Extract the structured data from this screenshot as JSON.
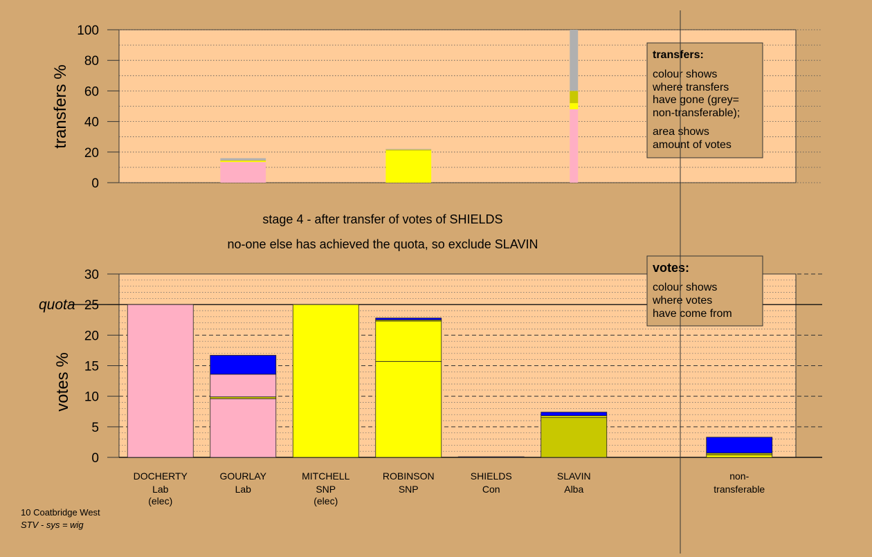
{
  "stage_text": {
    "line1": "stage 4 - after transfer of votes of SHIELDS",
    "line2": "no-one else has achieved the quota, so exclude SLAVIN"
  },
  "footer": {
    "ward": "10 Coatbridge West",
    "system": "STV - sys = wig"
  },
  "transfers_box": {
    "title": "transfers:",
    "line1": "colour shows",
    "line2": "where transfers",
    "line3": "have gone (grey=",
    "line4": "non-transferable);",
    "line5": "area shows",
    "line6": "amount of votes"
  },
  "votes_box": {
    "title": "votes:",
    "line1": "colour shows",
    "line2": "where votes",
    "line3": "have come from"
  },
  "colors": {
    "background": "#D3A872",
    "plot": "#FFCC99",
    "labour": "#FFAFC4",
    "snp": "#FFFF00",
    "alba": "#C8C800",
    "conservative": "#0000FF",
    "non_transferable": "#B0B0B0"
  },
  "chart_data": [
    {
      "type": "bar",
      "stacked": true,
      "ylabel": "transfers %",
      "ylim": [
        0,
        100
      ],
      "yticks": [
        0,
        20,
        40,
        60,
        80,
        100
      ],
      "grid": "dotted",
      "transfers": [
        {
          "from_column": 1,
          "width_share": 0.55,
          "segments": [
            {
              "color": "#FFAFC4",
              "from": 0,
              "to": 13.5
            },
            {
              "color": "#FFFF00",
              "from": 13.5,
              "to": 14.2
            },
            {
              "color": "#C8C800",
              "from": 14.2,
              "to": 14.6
            },
            {
              "color": "#B0B0B0",
              "from": 14.6,
              "to": 16
            }
          ]
        },
        {
          "from_column": 3,
          "width_share": 0.55,
          "segments": [
            {
              "color": "#FFFF00",
              "from": 0,
              "to": 21
            },
            {
              "color": "#C8C800",
              "from": 21,
              "to": 21.6
            },
            {
              "color": "#B0B0B0",
              "from": 21.6,
              "to": 22
            }
          ]
        },
        {
          "from_column": 5,
          "width_share": 0.1,
          "segments": [
            {
              "color": "#FFAFC4",
              "from": 0,
              "to": 48
            },
            {
              "color": "#FFFF00",
              "from": 48,
              "to": 52
            },
            {
              "color": "#C8C800",
              "from": 52,
              "to": 60
            },
            {
              "color": "#B0B0B0",
              "from": 60,
              "to": 100
            }
          ]
        }
      ]
    },
    {
      "type": "bar",
      "stacked": true,
      "ylabel": "votes %",
      "ylim": [
        0,
        30
      ],
      "yticks": [
        0,
        5,
        10,
        15,
        20,
        25,
        30
      ],
      "quota": 25,
      "quota_label": "quota",
      "grid": "dashed",
      "categories": [
        {
          "name": "DOCHERTY",
          "party": "Lab",
          "note": "(elec)"
        },
        {
          "name": "GOURLAY",
          "party": "Lab",
          "note": ""
        },
        {
          "name": "MITCHELL",
          "party": "SNP",
          "note": "(elec)"
        },
        {
          "name": "ROBINSON",
          "party": "SNP",
          "note": ""
        },
        {
          "name": "SHIELDS",
          "party": "Con",
          "note": ""
        },
        {
          "name": "SLAVIN",
          "party": "Alba",
          "note": ""
        },
        {
          "name": "",
          "party": "",
          "note": ""
        },
        {
          "name": "non-",
          "party": "transferable",
          "note": ""
        }
      ],
      "stacks": [
        [
          {
            "color": "#FFAFC4",
            "from": 0,
            "to": 25
          }
        ],
        [
          {
            "color": "#FFAFC4",
            "from": 0,
            "to": 9.6
          },
          {
            "color": "#C8C800",
            "from": 9.6,
            "to": 9.9
          },
          {
            "color": "#FFAFC4",
            "from": 9.9,
            "to": 13.6
          },
          {
            "color": "#0000FF",
            "from": 13.6,
            "to": 16.7
          }
        ],
        [
          {
            "color": "#FFFF00",
            "from": 0,
            "to": 25
          }
        ],
        [
          {
            "color": "#FFFF00",
            "from": 0,
            "to": 15.7
          },
          {
            "color": "#FFFF00",
            "from": 15.7,
            "to": 22.3
          },
          {
            "color": "#C8C800",
            "from": 22.3,
            "to": 22.5
          },
          {
            "color": "#0000FF",
            "from": 22.5,
            "to": 22.8
          }
        ],
        [
          {
            "color": "#0000FF",
            "from": 0,
            "to": 0.1
          }
        ],
        [
          {
            "color": "#C8C800",
            "from": 0,
            "to": 6.5
          },
          {
            "color": "#FFFF00",
            "from": 6.5,
            "to": 6.8
          },
          {
            "color": "#0000FF",
            "from": 6.8,
            "to": 7.4
          }
        ],
        [],
        [
          {
            "color": "#FFFF00",
            "from": 0,
            "to": 0.4
          },
          {
            "color": "#C8C800",
            "from": 0.4,
            "to": 0.7
          },
          {
            "color": "#0000FF",
            "from": 0.7,
            "to": 3.3
          }
        ]
      ]
    }
  ]
}
